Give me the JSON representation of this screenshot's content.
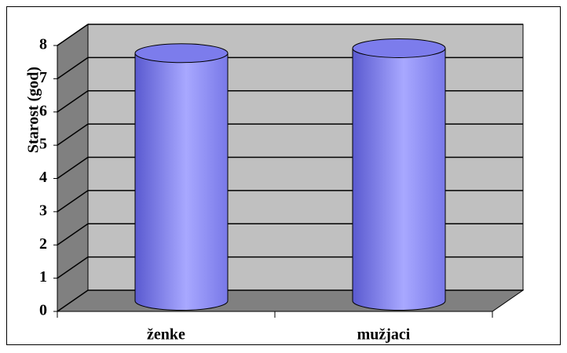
{
  "chart_data": {
    "type": "bar3d",
    "categories": [
      "ženke",
      "mužjaci"
    ],
    "values": [
      7.45,
      7.6
    ],
    "color": "#8c8cf4",
    "y_label": "Starost (god)",
    "ylim": [
      0,
      8
    ],
    "yticks": [
      0,
      1,
      2,
      3,
      4,
      5,
      6,
      7,
      8
    ],
    "grid": true
  }
}
